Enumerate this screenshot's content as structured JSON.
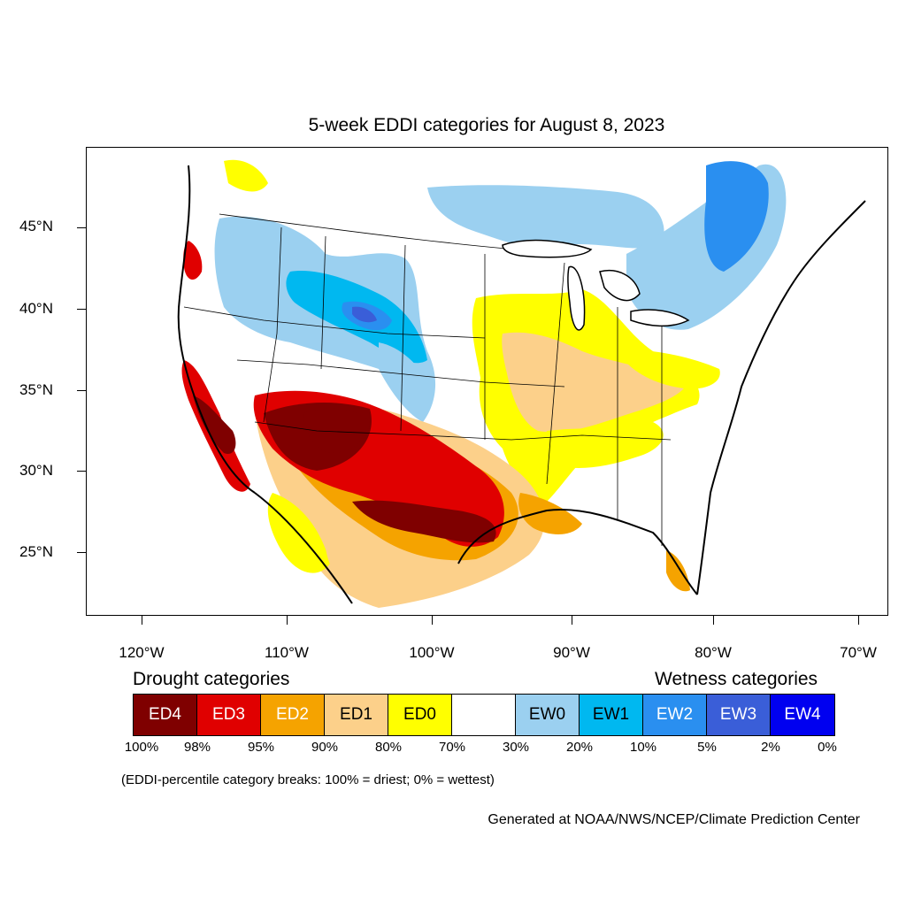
{
  "title": "5-week EDDI categories for August 8, 2023",
  "map": {
    "lat_labels": [
      "45°N",
      "40°N",
      "35°N",
      "30°N",
      "25°N"
    ],
    "lon_labels": [
      "120°W",
      "110°W",
      "100°W",
      "90°W",
      "80°W",
      "70°W"
    ],
    "colors": {
      "ED4": "#7f0000",
      "ED3": "#e00000",
      "ED2": "#f5a300",
      "ED1": "#fcd08a",
      "ED0": "#ffff00",
      "neutral": "#ffffff",
      "EW0": "#9bd0f0",
      "EW1": "#00b8f0",
      "EW2": "#2a8ff0",
      "EW3": "#3a5ed8",
      "EW4": "#0000f0",
      "boundaries": "#000000"
    }
  },
  "legend": {
    "drought_heading": "Drought categories",
    "wetness_heading": "Wetness categories",
    "categories": [
      {
        "label": "ED4",
        "color": "#7f0000",
        "text_color": "#ffffff"
      },
      {
        "label": "ED3",
        "color": "#e00000",
        "text_color": "#ffffff"
      },
      {
        "label": "ED2",
        "color": "#f5a300",
        "text_color": "#ffffff"
      },
      {
        "label": "ED1",
        "color": "#fcd08a",
        "text_color": "#000000"
      },
      {
        "label": "ED0",
        "color": "#ffff00",
        "text_color": "#000000"
      },
      {
        "label": "",
        "color": "#ffffff",
        "text_color": "#000000"
      },
      {
        "label": "EW0",
        "color": "#9bd0f0",
        "text_color": "#000000"
      },
      {
        "label": "EW1",
        "color": "#00b8f0",
        "text_color": "#000000"
      },
      {
        "label": "EW2",
        "color": "#2a8ff0",
        "text_color": "#ffffff"
      },
      {
        "label": "EW3",
        "color": "#3a5ed8",
        "text_color": "#ffffff"
      },
      {
        "label": "EW4",
        "color": "#0000f0",
        "text_color": "#ffffff"
      }
    ],
    "percentiles": [
      "100%",
      "98%",
      "95%",
      "90%",
      "80%",
      "70%",
      "30%",
      "20%",
      "10%",
      "5%",
      "2%",
      "0%"
    ],
    "note": "(EDDI-percentile category breaks: 100% = driest; 0% = wettest)"
  },
  "credit": "Generated at NOAA/NWS/NCEP/Climate Prediction Center"
}
